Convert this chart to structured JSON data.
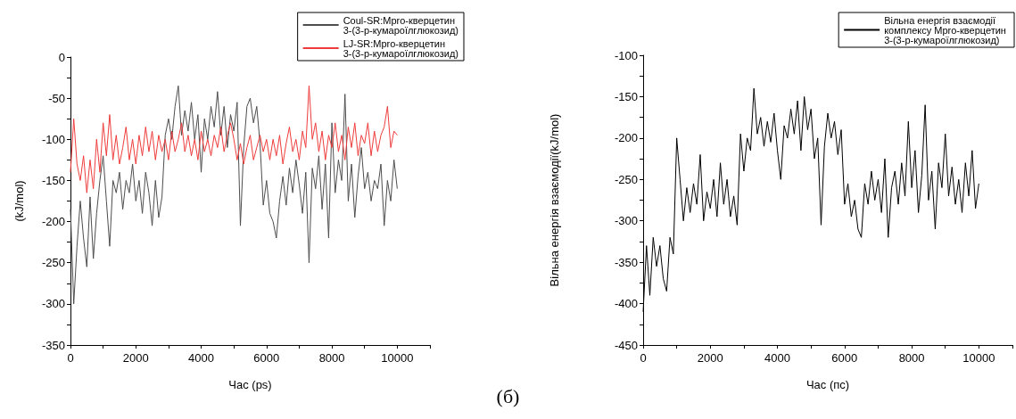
{
  "chart_data": [
    {
      "type": "line",
      "xlabel": "Час (ps)",
      "ylabel": "(kJ/mol)",
      "legend": "top right",
      "annotations": [
        "(б)"
      ],
      "xlim": [
        0,
        11000
      ],
      "xticks": [
        0,
        {
          "value": 1000,
          "label": null
        },
        2000,
        {
          "value": 3000,
          "label": null
        },
        4000,
        {
          "value": 5000,
          "label": null
        },
        6000,
        {
          "value": 7000,
          "label": null
        },
        8000,
        {
          "value": 9000,
          "label": null
        },
        10000,
        {
          "value": 11000,
          "label": null
        }
      ],
      "ylim": [
        -350,
        0
      ],
      "yticks": [
        -350,
        {
          "value": -325,
          "label": null
        },
        -300,
        {
          "value": -275,
          "label": null
        },
        -250,
        {
          "value": -225,
          "label": null
        },
        -200,
        {
          "value": -175,
          "label": null
        },
        -150,
        {
          "value": -125,
          "label": null
        },
        -100,
        {
          "value": -75,
          "label": null
        },
        -50,
        {
          "value": -25,
          "label": null
        },
        0
      ],
      "x": [
        0,
        100,
        200,
        300,
        400,
        500,
        600,
        700,
        800,
        900,
        1000,
        1100,
        1200,
        1300,
        1400,
        1500,
        1600,
        1700,
        1800,
        1900,
        2000,
        2100,
        2200,
        2300,
        2400,
        2500,
        2600,
        2700,
        2800,
        2900,
        3000,
        3100,
        3200,
        3300,
        3400,
        3500,
        3600,
        3700,
        3800,
        3900,
        4000,
        4100,
        4200,
        4300,
        4400,
        4500,
        4600,
        4700,
        4800,
        4900,
        5000,
        5100,
        5200,
        5300,
        5400,
        5500,
        5600,
        5700,
        5800,
        5900,
        6000,
        6100,
        6200,
        6300,
        6400,
        6500,
        6600,
        6700,
        6800,
        6900,
        7000,
        7100,
        7200,
        7300,
        7400,
        7500,
        7600,
        7700,
        7800,
        7900,
        8000,
        8100,
        8200,
        8300,
        8400,
        8500,
        8600,
        8700,
        8800,
        8900,
        9000,
        9100,
        9200,
        9300,
        9400,
        9500,
        9600,
        9700,
        9800,
        9900,
        10000
      ],
      "series": [
        {
          "name": "Coul-SR:Mpro-кверцетин 3-(3-р-кумароїлглюкозид)",
          "color": "#4d4d4d",
          "values": [
            -185,
            -300,
            -230,
            -175,
            -220,
            -255,
            -170,
            -245,
            -190,
            -150,
            -120,
            -175,
            -230,
            -150,
            -165,
            -140,
            -185,
            -150,
            -165,
            -130,
            -175,
            -150,
            -190,
            -140,
            -165,
            -205,
            -150,
            -195,
            -170,
            -95,
            -75,
            -100,
            -60,
            -35,
            -95,
            -65,
            -90,
            -55,
            -100,
            -70,
            -140,
            -75,
            -100,
            -60,
            -85,
            -42,
            -95,
            -60,
            -110,
            -70,
            -90,
            -55,
            -205,
            -110,
            -60,
            -50,
            -80,
            -60,
            -105,
            -180,
            -150,
            -190,
            -200,
            -220,
            -175,
            -145,
            -180,
            -135,
            -165,
            -125,
            -155,
            -190,
            -140,
            -250,
            -135,
            -160,
            -120,
            -185,
            -130,
            -220,
            -80,
            -165,
            -125,
            -150,
            -45,
            -175,
            -130,
            -195,
            -145,
            -110,
            -160,
            -140,
            -175,
            -150,
            -160,
            -130,
            -205,
            -150,
            -175,
            -125,
            -160
          ]
        },
        {
          "name": "LJ-SR:Mpro-кверцетин 3-(3-р-кумароїлглюкозид)",
          "color": "#ee3b3b",
          "values": [
            -140,
            -75,
            -130,
            -150,
            -120,
            -165,
            -125,
            -160,
            -100,
            -140,
            -80,
            -120,
            -70,
            -125,
            -95,
            -130,
            -110,
            -85,
            -125,
            -100,
            -130,
            -95,
            -120,
            -85,
            -115,
            -90,
            -125,
            -95,
            -115,
            -100,
            -125,
            -90,
            -115,
            -100,
            -80,
            -115,
            -95,
            -120,
            -100,
            -125,
            -90,
            -115,
            -100,
            -120,
            -95,
            -110,
            -85,
            -115,
            -95,
            -80,
            -100,
            -125,
            -105,
            -130,
            -110,
            -95,
            -125,
            -110,
            -95,
            -115,
            -100,
            -125,
            -100,
            -120,
            -95,
            -130,
            -105,
            -85,
            -115,
            -100,
            -125,
            -90,
            -110,
            -35,
            -100,
            -80,
            -115,
            -90,
            -125,
            -95,
            -110,
            -80,
            -115,
            -95,
            -125,
            -85,
            -110,
            -80,
            -120,
            -95,
            -105,
            -80,
            -120,
            -90,
            -115,
            -95,
            -85,
            -60,
            -110,
            -90,
            -95
          ]
        }
      ]
    },
    {
      "type": "line",
      "xlabel": "Час (пс)",
      "ylabel": "Вільна енергія взаємодії(kJ/mol)",
      "legend": "top right",
      "xlim": [
        0,
        11000
      ],
      "xticks": [
        0,
        {
          "value": 1000,
          "label": null
        },
        2000,
        {
          "value": 3000,
          "label": null
        },
        4000,
        {
          "value": 5000,
          "label": null
        },
        6000,
        {
          "value": 7000,
          "label": null
        },
        8000,
        {
          "value": 9000,
          "label": null
        },
        10000,
        {
          "value": 11000,
          "label": null
        }
      ],
      "ylim": [
        -450,
        -100
      ],
      "yticks": [
        -450,
        {
          "value": -425,
          "label": null
        },
        -400,
        {
          "value": -375,
          "label": null
        },
        -350,
        {
          "value": -325,
          "label": null
        },
        -300,
        {
          "value": -275,
          "label": null
        },
        -250,
        {
          "value": -225,
          "label": null
        },
        -200,
        {
          "value": -175,
          "label": null
        },
        -150,
        {
          "value": -125,
          "label": null
        },
        -100
      ],
      "x": [
        0,
        100,
        200,
        300,
        400,
        500,
        600,
        700,
        800,
        900,
        1000,
        1100,
        1200,
        1300,
        1400,
        1500,
        1600,
        1700,
        1800,
        1900,
        2000,
        2100,
        2200,
        2300,
        2400,
        2500,
        2600,
        2700,
        2800,
        2900,
        3000,
        3100,
        3200,
        3300,
        3400,
        3500,
        3600,
        3700,
        3800,
        3900,
        4000,
        4100,
        4200,
        4300,
        4400,
        4500,
        4600,
        4700,
        4800,
        4900,
        5000,
        5100,
        5200,
        5300,
        5400,
        5500,
        5600,
        5700,
        5800,
        5900,
        6000,
        6100,
        6200,
        6300,
        6400,
        6500,
        6600,
        6700,
        6800,
        6900,
        7000,
        7100,
        7200,
        7300,
        7400,
        7500,
        7600,
        7700,
        7800,
        7900,
        8000,
        8100,
        8200,
        8300,
        8400,
        8500,
        8600,
        8700,
        8800,
        8900,
        9000,
        9100,
        9200,
        9300,
        9400,
        9500,
        9600,
        9700,
        9800,
        9900,
        10000
      ],
      "series": [
        {
          "name": "Вільна енергія взаємодії комплексу Mpro-кверцетин 3-(3-р-кумароїлглюкозид)",
          "color": "#000000",
          "values": [
            -410,
            -330,
            -390,
            -320,
            -355,
            -330,
            -370,
            -385,
            -320,
            -340,
            -200,
            -250,
            -300,
            -260,
            -290,
            -255,
            -280,
            -220,
            -300,
            -265,
            -285,
            -250,
            -295,
            -230,
            -280,
            -250,
            -295,
            -270,
            -305,
            -195,
            -240,
            -200,
            -215,
            -140,
            -195,
            -175,
            -210,
            -180,
            -205,
            -170,
            -215,
            -250,
            -185,
            -200,
            -165,
            -195,
            -155,
            -215,
            -150,
            -190,
            -165,
            -225,
            -200,
            -305,
            -210,
            -170,
            -200,
            -180,
            -220,
            -190,
            -280,
            -255,
            -295,
            -275,
            -310,
            -320,
            -255,
            -280,
            -240,
            -275,
            -250,
            -290,
            -225,
            -320,
            -260,
            -240,
            -280,
            -230,
            -270,
            -180,
            -260,
            -215,
            -290,
            -245,
            -160,
            -275,
            -240,
            -310,
            -230,
            -260,
            -195,
            -270,
            -235,
            -280,
            -250,
            -290,
            -230,
            -270,
            -215,
            -285,
            -255
          ]
        }
      ]
    }
  ]
}
